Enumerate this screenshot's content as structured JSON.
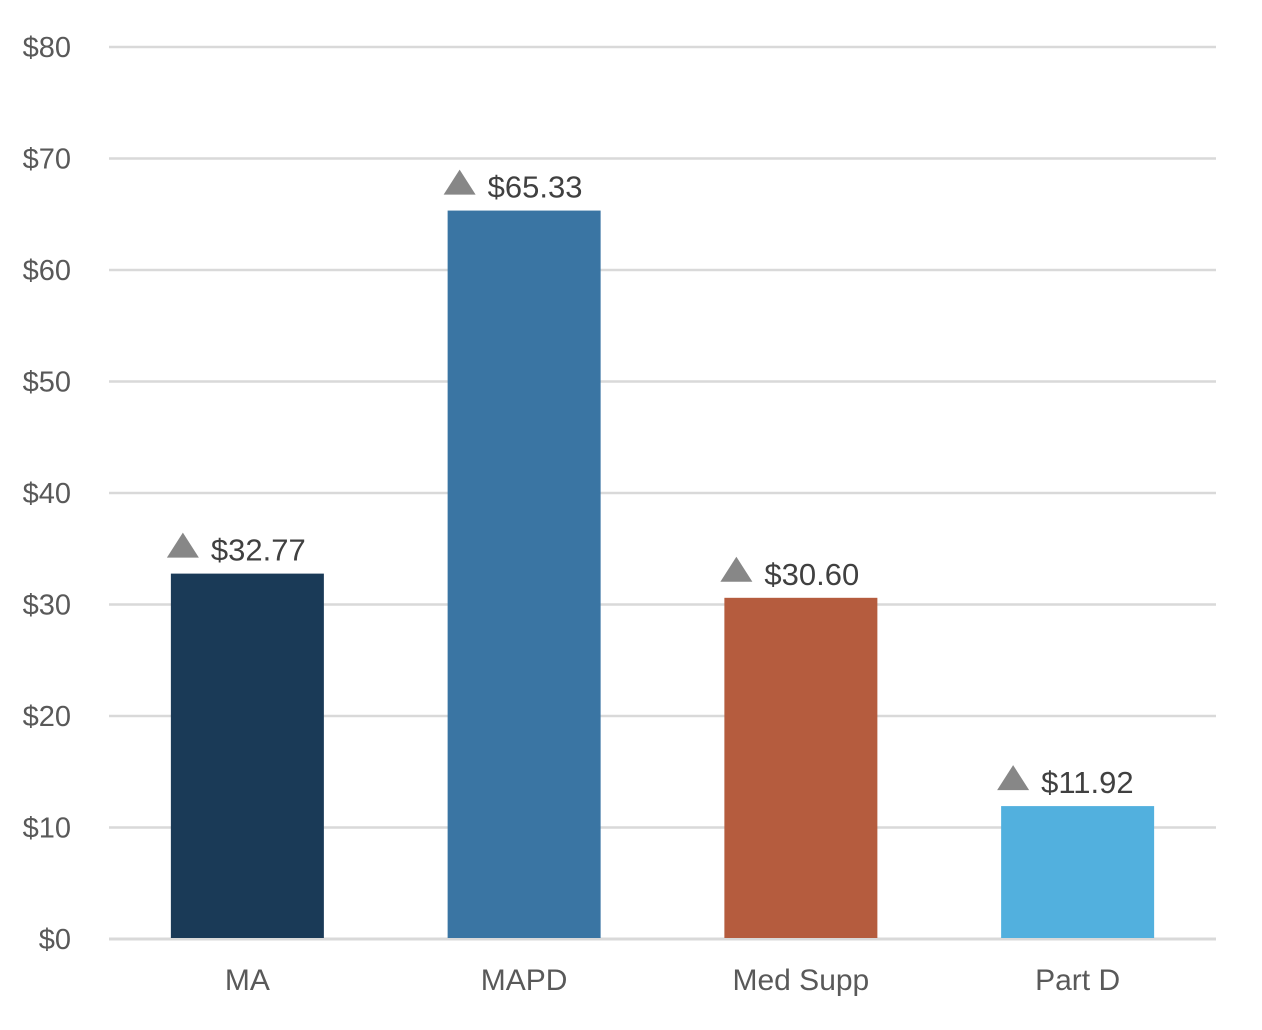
{
  "chart_data": {
    "type": "bar",
    "title": "",
    "xlabel": "",
    "ylabel": "",
    "categories": [
      "MA",
      "MAPD",
      "Med Supp",
      "Part D"
    ],
    "values": [
      32.77,
      65.33,
      30.6,
      11.92
    ],
    "data_labels": [
      "$32.77",
      "$65.33",
      "$30.60",
      "$11.92"
    ],
    "label_marker": "up-triangle-icon",
    "ylim": [
      0,
      80
    ],
    "yticks": [
      0,
      10,
      20,
      30,
      40,
      50,
      60,
      70,
      80
    ],
    "ytick_labels": [
      "$0",
      "$10",
      "$20",
      "$30",
      "$40",
      "$50",
      "$60",
      "$70",
      "$80"
    ],
    "grid": true,
    "legend": "none",
    "colors": [
      "#1a3a57",
      "#3a75a3",
      "#b55c3e",
      "#52b0de"
    ],
    "gridline_color": "#d9d9d9",
    "marker_color": "#878787"
  }
}
